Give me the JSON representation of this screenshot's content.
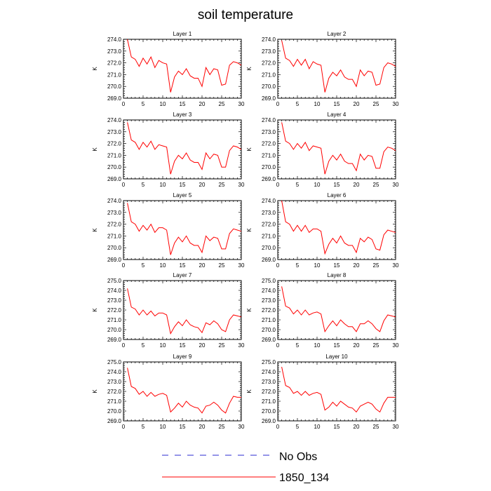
{
  "title": "soil temperature",
  "legend": {
    "placement": "bottom",
    "entries": [
      {
        "label": "No Obs",
        "color": "#2b2bd0",
        "style": "dashed"
      },
      {
        "label": "1850_134",
        "color": "#ff0000",
        "style": "solid"
      }
    ]
  },
  "colors": {
    "line": "#ff0000"
  },
  "chart_data": [
    {
      "type": "line",
      "title": "Layer 1",
      "ylabel": "K",
      "xlim": [
        0,
        30
      ],
      "ylim": [
        269.0,
        274.0
      ],
      "xticks": [
        0,
        5,
        10,
        15,
        20,
        25,
        30
      ],
      "yticks": [
        269.0,
        270.0,
        271.0,
        272.0,
        273.0,
        274.0
      ],
      "x": [
        1,
        2,
        3,
        4,
        5,
        6,
        7,
        8,
        9,
        10,
        11,
        12,
        13,
        14,
        15,
        16,
        17,
        18,
        19,
        20,
        21,
        22,
        23,
        24,
        25,
        26,
        27,
        28,
        29,
        30
      ],
      "series": [
        {
          "name": "1850_134",
          "values": [
            274.0,
            272.5,
            272.3,
            271.7,
            272.4,
            271.9,
            272.5,
            271.6,
            272.2,
            272.0,
            271.9,
            269.5,
            270.8,
            271.3,
            271.0,
            271.5,
            270.9,
            270.7,
            270.7,
            270.0,
            271.6,
            271.0,
            271.5,
            271.4,
            270.1,
            270.2,
            271.8,
            272.1,
            272.0,
            271.8
          ]
        }
      ]
    },
    {
      "type": "line",
      "title": "Layer 2",
      "ylabel": "K",
      "xlim": [
        0,
        30
      ],
      "ylim": [
        269.0,
        274.0
      ],
      "xticks": [
        0,
        5,
        10,
        15,
        20,
        25,
        30
      ],
      "yticks": [
        269.0,
        270.0,
        271.0,
        272.0,
        273.0,
        274.0
      ],
      "x": [
        1,
        2,
        3,
        4,
        5,
        6,
        7,
        8,
        9,
        10,
        11,
        12,
        13,
        14,
        15,
        16,
        17,
        18,
        19,
        20,
        21,
        22,
        23,
        24,
        25,
        26,
        27,
        28,
        29,
        30
      ],
      "series": [
        {
          "name": "1850_134",
          "values": [
            273.9,
            272.4,
            272.2,
            271.7,
            272.3,
            271.8,
            272.3,
            271.5,
            272.1,
            271.9,
            271.8,
            269.5,
            270.7,
            271.2,
            270.9,
            271.4,
            270.8,
            270.6,
            270.6,
            270.0,
            271.4,
            270.9,
            271.3,
            271.2,
            270.1,
            270.2,
            271.6,
            272.0,
            271.9,
            271.7
          ]
        }
      ]
    },
    {
      "type": "line",
      "title": "Layer 3",
      "ylabel": "K",
      "xlim": [
        0,
        30
      ],
      "ylim": [
        269.0,
        274.0
      ],
      "xticks": [
        0,
        5,
        10,
        15,
        20,
        25,
        30
      ],
      "yticks": [
        269.0,
        270.0,
        271.0,
        272.0,
        273.0,
        274.0
      ],
      "x": [
        1,
        2,
        3,
        4,
        5,
        6,
        7,
        8,
        9,
        10,
        11,
        12,
        13,
        14,
        15,
        16,
        17,
        18,
        19,
        20,
        21,
        22,
        23,
        24,
        25,
        26,
        27,
        28,
        29,
        30
      ],
      "series": [
        {
          "name": "1850_134",
          "values": [
            273.8,
            272.3,
            272.1,
            271.5,
            272.1,
            271.7,
            272.2,
            271.5,
            271.9,
            271.8,
            271.7,
            269.4,
            270.5,
            271.0,
            270.7,
            271.2,
            270.6,
            270.4,
            270.4,
            269.8,
            271.2,
            270.7,
            271.1,
            271.0,
            270.0,
            270.0,
            271.4,
            271.8,
            271.7,
            271.5
          ]
        }
      ]
    },
    {
      "type": "line",
      "title": "Layer 4",
      "ylabel": "K",
      "xlim": [
        0,
        30
      ],
      "ylim": [
        269.0,
        274.0
      ],
      "xticks": [
        0,
        5,
        10,
        15,
        20,
        25,
        30
      ],
      "yticks": [
        269.0,
        270.0,
        271.0,
        272.0,
        273.0,
        274.0
      ],
      "x": [
        1,
        2,
        3,
        4,
        5,
        6,
        7,
        8,
        9,
        10,
        11,
        12,
        13,
        14,
        15,
        16,
        17,
        18,
        19,
        20,
        21,
        22,
        23,
        24,
        25,
        26,
        27,
        28,
        29,
        30
      ],
      "series": [
        {
          "name": "1850_134",
          "values": [
            273.8,
            272.2,
            272.0,
            271.5,
            272.0,
            271.6,
            272.1,
            271.4,
            271.8,
            271.7,
            271.6,
            269.4,
            270.5,
            271.0,
            270.6,
            271.1,
            270.5,
            270.3,
            270.3,
            269.7,
            271.1,
            270.6,
            271.0,
            270.9,
            269.9,
            269.9,
            271.3,
            271.7,
            271.6,
            271.4
          ]
        }
      ]
    },
    {
      "type": "line",
      "title": "Layer 5",
      "ylabel": "K",
      "xlim": [
        0,
        30
      ],
      "ylim": [
        269.0,
        274.0
      ],
      "xticks": [
        0,
        5,
        10,
        15,
        20,
        25,
        30
      ],
      "yticks": [
        269.0,
        270.0,
        271.0,
        272.0,
        273.0,
        274.0
      ],
      "x": [
        1,
        2,
        3,
        4,
        5,
        6,
        7,
        8,
        9,
        10,
        11,
        12,
        13,
        14,
        15,
        16,
        17,
        18,
        19,
        20,
        21,
        22,
        23,
        24,
        25,
        26,
        27,
        28,
        29,
        30
      ],
      "series": [
        {
          "name": "1850_134",
          "values": [
            273.8,
            272.2,
            272.0,
            271.4,
            271.9,
            271.5,
            272.0,
            271.3,
            271.7,
            271.7,
            271.5,
            269.4,
            270.4,
            270.9,
            270.5,
            271.0,
            270.4,
            270.2,
            270.2,
            269.6,
            271.0,
            270.6,
            270.9,
            270.8,
            269.9,
            269.9,
            271.2,
            271.6,
            271.5,
            271.4
          ]
        }
      ]
    },
    {
      "type": "line",
      "title": "Layer 6",
      "ylabel": "K",
      "xlim": [
        0,
        30
      ],
      "ylim": [
        269.0,
        274.0
      ],
      "xticks": [
        0,
        5,
        10,
        15,
        20,
        25,
        30
      ],
      "yticks": [
        269.0,
        270.0,
        271.0,
        272.0,
        273.0,
        274.0
      ],
      "x": [
        1,
        2,
        3,
        4,
        5,
        6,
        7,
        8,
        9,
        10,
        11,
        12,
        13,
        14,
        15,
        16,
        17,
        18,
        19,
        20,
        21,
        22,
        23,
        24,
        25,
        26,
        27,
        28,
        29,
        30
      ],
      "series": [
        {
          "name": "1850_134",
          "values": [
            274.0,
            272.2,
            272.0,
            271.4,
            271.9,
            271.4,
            271.9,
            271.3,
            271.6,
            271.6,
            271.4,
            269.5,
            270.3,
            270.8,
            270.4,
            271.0,
            270.4,
            270.2,
            270.2,
            269.6,
            270.8,
            270.5,
            270.9,
            270.7,
            269.9,
            269.8,
            271.1,
            271.5,
            271.4,
            271.3
          ]
        }
      ]
    },
    {
      "type": "line",
      "title": "Layer 7",
      "ylabel": "K",
      "xlim": [
        0,
        30
      ],
      "ylim": [
        269.0,
        275.0
      ],
      "xticks": [
        0,
        5,
        10,
        15,
        20,
        25,
        30
      ],
      "yticks": [
        269.0,
        270.0,
        271.0,
        272.0,
        273.0,
        274.0,
        275.0
      ],
      "x": [
        1,
        2,
        3,
        4,
        5,
        6,
        7,
        8,
        9,
        10,
        11,
        12,
        13,
        14,
        15,
        16,
        17,
        18,
        19,
        20,
        21,
        22,
        23,
        24,
        25,
        26,
        27,
        28,
        29,
        30
      ],
      "series": [
        {
          "name": "1850_134",
          "values": [
            274.2,
            272.3,
            272.1,
            271.5,
            272.0,
            271.5,
            271.9,
            271.4,
            271.7,
            271.7,
            271.5,
            269.6,
            270.3,
            270.8,
            270.4,
            271.0,
            270.5,
            270.3,
            270.2,
            269.7,
            270.7,
            270.5,
            270.9,
            270.6,
            270.0,
            269.8,
            271.0,
            271.5,
            271.4,
            271.3
          ]
        }
      ]
    },
    {
      "type": "line",
      "title": "Layer 8",
      "ylabel": "K",
      "xlim": [
        0,
        30
      ],
      "ylim": [
        269.0,
        275.0
      ],
      "xticks": [
        0,
        5,
        10,
        15,
        20,
        25,
        30
      ],
      "yticks": [
        269.0,
        270.0,
        271.0,
        272.0,
        273.0,
        274.0,
        275.0
      ],
      "x": [
        1,
        2,
        3,
        4,
        5,
        6,
        7,
        8,
        9,
        10,
        11,
        12,
        13,
        14,
        15,
        16,
        17,
        18,
        19,
        20,
        21,
        22,
        23,
        24,
        25,
        26,
        27,
        28,
        29,
        30
      ],
      "series": [
        {
          "name": "1850_134",
          "values": [
            274.4,
            272.4,
            272.2,
            271.6,
            272.0,
            271.5,
            272.0,
            271.5,
            271.7,
            271.8,
            271.6,
            269.8,
            270.4,
            270.9,
            270.4,
            271.0,
            270.6,
            270.3,
            270.3,
            269.8,
            270.6,
            270.6,
            270.9,
            270.6,
            270.1,
            269.8,
            270.9,
            271.5,
            271.4,
            271.3
          ]
        }
      ]
    },
    {
      "type": "line",
      "title": "Layer 9",
      "ylabel": "K",
      "xlim": [
        0,
        30
      ],
      "ylim": [
        269.0,
        275.0
      ],
      "xticks": [
        0,
        5,
        10,
        15,
        20,
        25,
        30
      ],
      "yticks": [
        269.0,
        270.0,
        271.0,
        272.0,
        273.0,
        274.0,
        275.0
      ],
      "x": [
        1,
        2,
        3,
        4,
        5,
        6,
        7,
        8,
        9,
        10,
        11,
        12,
        13,
        14,
        15,
        16,
        17,
        18,
        19,
        20,
        21,
        22,
        23,
        24,
        25,
        26,
        27,
        28,
        29,
        30
      ],
      "series": [
        {
          "name": "1850_134",
          "values": [
            274.4,
            272.5,
            272.3,
            271.7,
            272.0,
            271.5,
            271.9,
            271.5,
            271.7,
            271.8,
            271.6,
            269.9,
            270.3,
            270.8,
            270.4,
            271.0,
            270.6,
            270.4,
            270.3,
            269.8,
            270.5,
            270.6,
            270.9,
            270.6,
            270.1,
            269.8,
            270.8,
            271.5,
            271.4,
            271.4
          ]
        }
      ]
    },
    {
      "type": "line",
      "title": "Layer 10",
      "ylabel": "K",
      "xlim": [
        0,
        30
      ],
      "ylim": [
        269.0,
        275.0
      ],
      "xticks": [
        0,
        5,
        10,
        15,
        20,
        25,
        30
      ],
      "yticks": [
        269.0,
        270.0,
        271.0,
        272.0,
        273.0,
        274.0,
        275.0
      ],
      "x": [
        1,
        2,
        3,
        4,
        5,
        6,
        7,
        8,
        9,
        10,
        11,
        12,
        13,
        14,
        15,
        16,
        17,
        18,
        19,
        20,
        21,
        22,
        23,
        24,
        25,
        26,
        27,
        28,
        29,
        30
      ],
      "series": [
        {
          "name": "1850_134",
          "values": [
            274.5,
            272.6,
            272.4,
            271.8,
            272.0,
            271.6,
            272.0,
            271.6,
            271.8,
            271.9,
            271.7,
            270.1,
            270.4,
            270.9,
            270.5,
            271.0,
            270.7,
            270.4,
            270.3,
            269.9,
            270.5,
            270.7,
            270.9,
            270.7,
            270.2,
            269.9,
            270.8,
            271.4,
            271.4,
            271.4
          ]
        }
      ]
    }
  ]
}
